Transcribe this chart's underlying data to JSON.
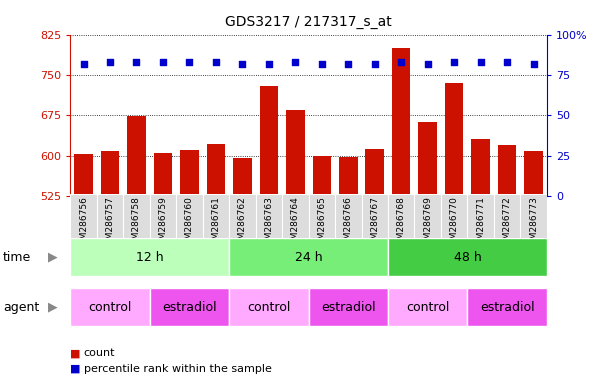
{
  "title": "GDS3217 / 217317_s_at",
  "samples": [
    "GSM286756",
    "GSM286757",
    "GSM286758",
    "GSM286759",
    "GSM286760",
    "GSM286761",
    "GSM286762",
    "GSM286763",
    "GSM286764",
    "GSM286765",
    "GSM286766",
    "GSM286767",
    "GSM286768",
    "GSM286769",
    "GSM286770",
    "GSM286771",
    "GSM286772",
    "GSM286773"
  ],
  "counts": [
    603,
    608,
    673,
    605,
    610,
    622,
    595,
    730,
    685,
    600,
    598,
    612,
    800,
    663,
    735,
    630,
    620,
    608
  ],
  "percentiles": [
    82,
    83,
    83,
    83,
    83,
    83,
    82,
    82,
    83,
    82,
    82,
    82,
    83,
    82,
    83,
    83,
    83,
    82
  ],
  "ylim_left": [
    525,
    825
  ],
  "yticks_left": [
    525,
    600,
    675,
    750,
    825
  ],
  "ylim_right": [
    0,
    100
  ],
  "yticks_right": [
    0,
    25,
    50,
    75,
    100
  ],
  "bar_color": "#CC1100",
  "dot_color": "#0000CC",
  "bg_color": "#FFFFFF",
  "grid_color": "#000000",
  "time_colors": [
    "#BBFFBB",
    "#77EE77",
    "#44CC44"
  ],
  "time_labels": [
    "12 h",
    "24 h",
    "48 h"
  ],
  "time_starts": [
    0,
    6,
    12
  ],
  "time_ends": [
    6,
    12,
    18
  ],
  "agent_labels": [
    "control",
    "estradiol",
    "control",
    "estradiol",
    "control",
    "estradiol"
  ],
  "agent_starts": [
    0,
    3,
    6,
    9,
    12,
    15
  ],
  "agent_ends": [
    3,
    6,
    9,
    12,
    15,
    18
  ],
  "agent_colors_light": "#FFAAFF",
  "agent_colors_dark": "#EE55EE",
  "legend_count_color": "#CC1100",
  "legend_dot_color": "#0000CC",
  "legend_count_label": "count",
  "legend_dot_label": "percentile rank within the sample",
  "tick_label_color": "#888888",
  "sample_box_color": "#DDDDDD"
}
